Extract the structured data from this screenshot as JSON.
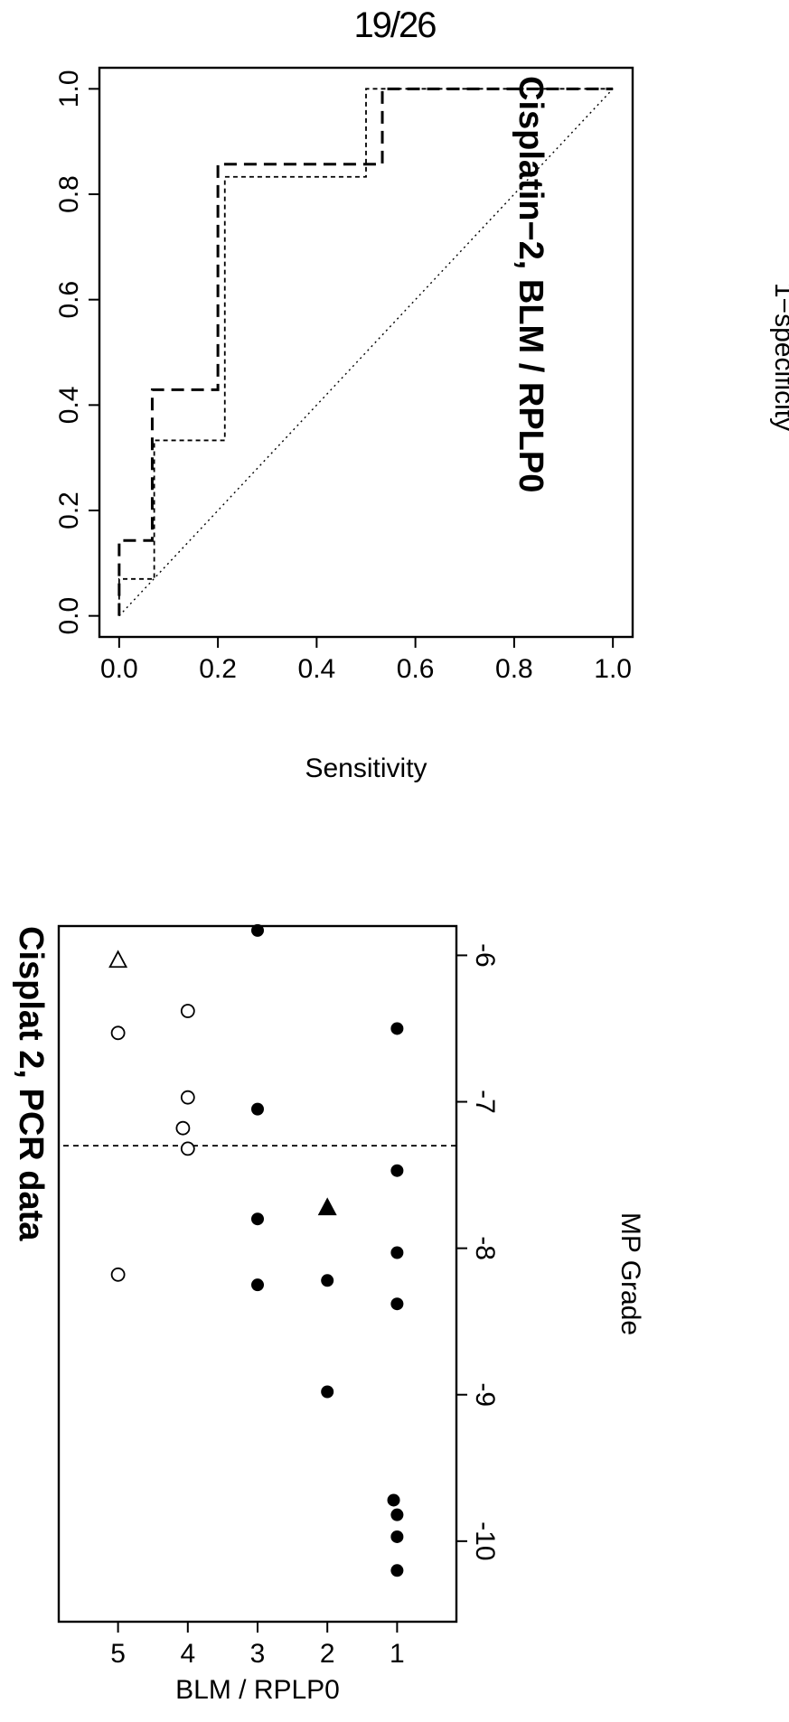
{
  "page": {
    "number": "19/26"
  },
  "chart_data": [
    {
      "type": "scatter",
      "title": "Cisplat 2, PCR data",
      "xlabel": "MP Grade",
      "ylabel": "BLM / RPLP0",
      "x_ticks": [
        "1",
        "2",
        "3",
        "4",
        "5"
      ],
      "y_ticks": [
        "-6",
        "-7",
        "-8",
        "-9",
        "-10"
      ],
      "xlim": [
        0.15,
        5.85
      ],
      "ylim": [
        -10.55,
        -5.8
      ],
      "threshold": {
        "y": -7.3,
        "style": "dashed"
      },
      "grid": false,
      "series": [
        {
          "marker": "filled-circle",
          "points": [
            {
              "x": 1,
              "y": -6.5
            },
            {
              "x": 1,
              "y": -7.47
            },
            {
              "x": 1,
              "y": -8.03
            },
            {
              "x": 1,
              "y": -8.38
            },
            {
              "x": 1,
              "y": -9.82
            },
            {
              "x": 1,
              "y": -9.97
            },
            {
              "x": 1,
              "y": -10.2
            },
            {
              "x": 1.05,
              "y": -9.72
            },
            {
              "x": 2,
              "y": -8.22
            },
            {
              "x": 2,
              "y": -8.98
            },
            {
              "x": 3,
              "y": -5.83
            },
            {
              "x": 3,
              "y": -7.05
            },
            {
              "x": 3,
              "y": -7.8
            },
            {
              "x": 3,
              "y": -8.25
            }
          ]
        },
        {
          "marker": "filled-triangle",
          "points": [
            {
              "x": 2,
              "y": -7.72
            }
          ]
        },
        {
          "marker": "open-circle",
          "points": [
            {
              "x": 4,
              "y": -6.38
            },
            {
              "x": 4,
              "y": -6.97
            },
            {
              "x": 4.07,
              "y": -7.18
            },
            {
              "x": 4,
              "y": -7.32
            },
            {
              "x": 5,
              "y": -6.53
            },
            {
              "x": 5,
              "y": -8.18
            }
          ]
        },
        {
          "marker": "open-triangle",
          "points": [
            {
              "x": 5,
              "y": -6.03
            }
          ]
        }
      ]
    },
    {
      "type": "line",
      "title": "Cisplatin−2, BLM / RPLP0",
      "xlabel": "1−specificity",
      "ylabel": "Sensitivity",
      "x_ticks": [
        "0.0",
        "0.2",
        "0.4",
        "0.6",
        "0.8",
        "1.0"
      ],
      "y_ticks": [
        "1.0",
        "0.8",
        "0.6",
        "0.4",
        "0.2",
        "0.0"
      ],
      "xlim": [
        -0.04,
        1.04
      ],
      "ylim": [
        -0.04,
        1.04
      ],
      "grid": false,
      "series": [
        {
          "style": "long-dashed",
          "x": [
            0,
            0,
            0.067,
            0.067,
            0.2,
            0.2,
            0.533,
            0.533,
            1.0
          ],
          "y": [
            0,
            0.143,
            0.143,
            0.429,
            0.429,
            0.857,
            0.857,
            1.0,
            1.0
          ]
        },
        {
          "style": "short-dashed",
          "x": [
            0,
            0,
            0.071,
            0.071,
            0.214,
            0.214,
            0.5,
            0.5,
            1.0
          ],
          "y": [
            0,
            0.07,
            0.07,
            0.333,
            0.333,
            0.833,
            0.833,
            1.0,
            1.0
          ]
        },
        {
          "style": "dotted",
          "x": [
            0,
            1.0
          ],
          "y": [
            0,
            1.0
          ]
        }
      ]
    }
  ]
}
